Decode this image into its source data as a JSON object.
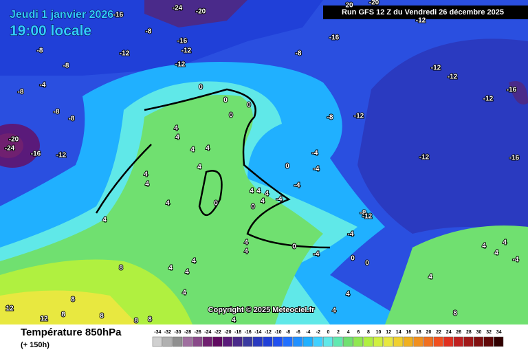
{
  "header": {
    "date": "Jeudi 1 janvier 2026",
    "time": "19:00 locale",
    "run": "Run GFS 12 Z du Vendredi 26 décembre 2025"
  },
  "copyright": "Copyright © 2025 Meteociel.fr",
  "footer": {
    "title": "Température 850hPa",
    "subtitle": "(+ 150h)"
  },
  "legend": {
    "ticks": [
      -34,
      -32,
      -30,
      -28,
      -26,
      -24,
      -22,
      -20,
      -18,
      -16,
      -14,
      -12,
      -10,
      -8,
      -6,
      -4,
      -2,
      0,
      2,
      4,
      6,
      8,
      10,
      12,
      14,
      16,
      18,
      20,
      22,
      24,
      26,
      28,
      30,
      32,
      34
    ],
    "colors": [
      "#d0d0d0",
      "#b0b0b0",
      "#909090",
      "#a070a0",
      "#8a4a8a",
      "#702070",
      "#600a60",
      "#5a1a7a",
      "#4a2a8a",
      "#3a3aa0",
      "#2a3ac0",
      "#2040d8",
      "#2050f0",
      "#2070ff",
      "#2090ff",
      "#20b0ff",
      "#40d0ff",
      "#60e8e8",
      "#60e8b0",
      "#70e070",
      "#90e850",
      "#b0f040",
      "#d0f040",
      "#e8e840",
      "#f0d030",
      "#f0b020",
      "#f09020",
      "#f07020",
      "#f05020",
      "#e03020",
      "#c02020",
      "#a01818",
      "#801010",
      "#600808",
      "#300000"
    ]
  },
  "map": {
    "labels": [
      "-16",
      "-24",
      "-20",
      "-8",
      "-16",
      "-12",
      "-8",
      "-12",
      "-8",
      "-16",
      "-12",
      "-8",
      "-4",
      "-8",
      "0",
      "0",
      "0",
      "0",
      "-8",
      "-8",
      "-20",
      "-24",
      "-16",
      "-12",
      "4",
      "4",
      "4",
      "4",
      "4",
      "4",
      "4",
      "4",
      "0",
      "4",
      "4",
      "4",
      "4",
      "4",
      "0",
      "0",
      "-4",
      "-4",
      "-4",
      "-4",
      "-8",
      "-12",
      "-12",
      "-12",
      "-16",
      "-12",
      "-12",
      "-16",
      "-8",
      "-12",
      "-4",
      "4",
      "4",
      "0",
      "-4",
      "0",
      "0",
      "4",
      "4",
      "4",
      "-4",
      "4",
      "4",
      "4",
      "4",
      "4",
      "8",
      "8",
      "12",
      "12",
      "8",
      "8",
      "8",
      "8",
      "4",
      "4",
      "4",
      "8",
      "-12",
      "-20",
      "20"
    ]
  }
}
